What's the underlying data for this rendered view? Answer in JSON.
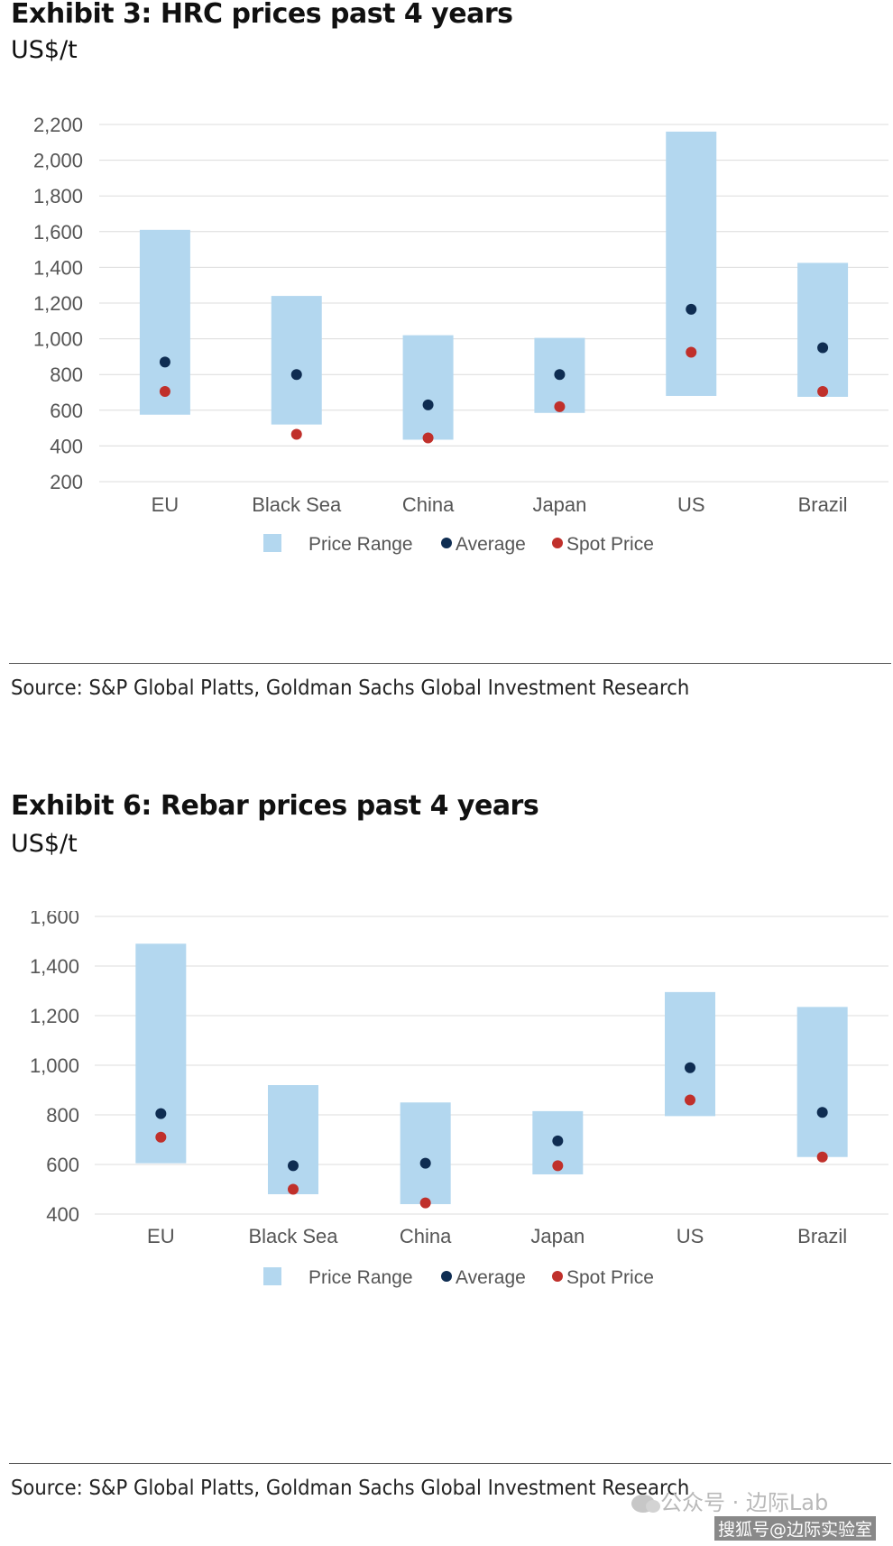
{
  "exhibit1": {
    "title": "Exhibit 3: HRC prices past 4 years",
    "unit": "US$/t",
    "source": "Source: S&P Global Platts, Goldman Sachs Global Investment Research"
  },
  "exhibit2": {
    "title": "Exhibit 6: Rebar prices past 4 years",
    "unit": "US$/t",
    "source": "Source: S&P Global Platts, Goldman Sachs Global Investment Research"
  },
  "chart_data": [
    {
      "type": "range-dot",
      "title": "Exhibit 3: HRC prices past 4 years",
      "ylabel": "US$/t",
      "xlabel": "",
      "ylim": [
        200,
        2200
      ],
      "yticks": [
        200,
        400,
        600,
        800,
        1000,
        1200,
        1400,
        1600,
        1800,
        2000,
        2200
      ],
      "grid": true,
      "legend": "bottom-center",
      "categories": [
        "EU",
        "Black Sea",
        "China",
        "Japan",
        "US",
        "Brazil"
      ],
      "series": [
        {
          "name": "Price Range",
          "kind": "range",
          "color": "#b3d7ef",
          "low": [
            575,
            520,
            435,
            585,
            680,
            675
          ],
          "high": [
            1610,
            1240,
            1020,
            1005,
            2160,
            1425
          ]
        },
        {
          "name": "Average",
          "kind": "dot",
          "color": "#0f2d52",
          "values": [
            870,
            800,
            630,
            800,
            1165,
            950
          ]
        },
        {
          "name": "Spot Price",
          "kind": "dot",
          "color": "#c0302b",
          "values": [
            705,
            465,
            445,
            620,
            925,
            705
          ]
        }
      ]
    },
    {
      "type": "range-dot",
      "title": "Exhibit 6: Rebar prices past 4 years",
      "ylabel": "US$/t",
      "xlabel": "",
      "ylim": [
        400,
        1600
      ],
      "yticks": [
        400,
        600,
        800,
        1000,
        1200,
        1400,
        1600
      ],
      "grid": true,
      "legend": "bottom-center",
      "categories": [
        "EU",
        "Black Sea",
        "China",
        "Japan",
        "US",
        "Brazil"
      ],
      "series": [
        {
          "name": "Price Range",
          "kind": "range",
          "color": "#b3d7ef",
          "low": [
            605,
            480,
            440,
            560,
            795,
            630
          ],
          "high": [
            1490,
            920,
            850,
            815,
            1295,
            1235
          ]
        },
        {
          "name": "Average",
          "kind": "dot",
          "color": "#0f2d52",
          "values": [
            805,
            595,
            605,
            695,
            990,
            810
          ]
        },
        {
          "name": "Spot Price",
          "kind": "dot",
          "color": "#c0302b",
          "values": [
            710,
            500,
            445,
            595,
            860,
            630
          ]
        }
      ]
    }
  ],
  "watermark": {
    "line1": "公众号 · 边际Lab",
    "line2": "搜狐号@边际实验室"
  }
}
